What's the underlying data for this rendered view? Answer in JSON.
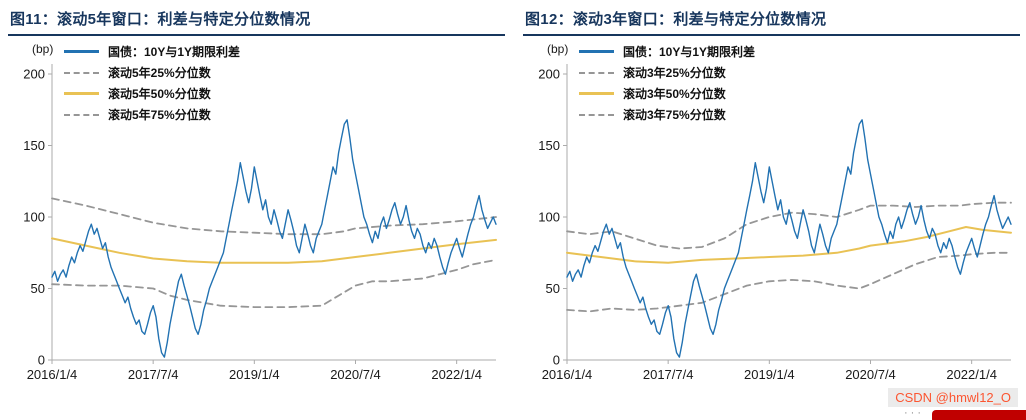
{
  "colors": {
    "title_navy": "#17365D",
    "spread_blue": "#2272B2",
    "percentile_gold": "#E9C254",
    "percentile_gray": "#969696",
    "watermark_red": "#FC5531",
    "banner_red": "#C00000"
  },
  "watermark": {
    "text": "CSDN @hmwl12_O",
    "dots": "···"
  },
  "chart_data": [
    {
      "type": "line",
      "title": "图11：滚动5年窗口：利差与特定分位数情况",
      "ylabel": "(bp)",
      "xlabel": "",
      "ylim": [
        0,
        200
      ],
      "xlim": [
        0,
        79
      ],
      "grid": false,
      "legend_position": "top-left-inside",
      "y_ticks": [
        0,
        50,
        100,
        150,
        200
      ],
      "x_ticks": [
        {
          "pos": 0,
          "label": "2016/1/4"
        },
        {
          "pos": 18,
          "label": "2017/7/4"
        },
        {
          "pos": 36,
          "label": "2019/1/4"
        },
        {
          "pos": 54,
          "label": "2020/7/4"
        },
        {
          "pos": 72,
          "label": "2022/1/4"
        }
      ],
      "legend": [
        {
          "label": "国债：10Y与1Y期限利差",
          "color": "#2272B2",
          "dash": false
        },
        {
          "label": "滚动5年25%分位数",
          "color": "#969696",
          "dash": true
        },
        {
          "label": "滚动5年50%分位数",
          "color": "#E9C254",
          "dash": false
        },
        {
          "label": "滚动5年75%分位数",
          "color": "#969696",
          "dash": true
        }
      ],
      "series": [
        {
          "key": "p75",
          "name": "滚动5年75%分位数",
          "color": "#969696",
          "dash": true,
          "width": 1.8,
          "x": [
            0,
            6,
            12,
            18,
            24,
            30,
            36,
            42,
            48,
            52,
            54,
            60,
            66,
            72,
            79
          ],
          "y": [
            113,
            108,
            102,
            96,
            92,
            90,
            89,
            88,
            88,
            90,
            92,
            94,
            95,
            97,
            100
          ]
        },
        {
          "key": "p25",
          "name": "滚动5年25%分位数",
          "color": "#969696",
          "dash": true,
          "width": 1.8,
          "x": [
            0,
            6,
            12,
            18,
            21,
            24,
            27,
            30,
            36,
            42,
            48,
            51,
            54,
            57,
            60,
            66,
            69,
            72,
            75,
            79
          ],
          "y": [
            53,
            52,
            52,
            50,
            45,
            42,
            40,
            38,
            37,
            37,
            38,
            45,
            52,
            55,
            55,
            57,
            60,
            63,
            67,
            70
          ]
        },
        {
          "key": "p50",
          "name": "滚动5年50%分位数",
          "color": "#E9C254",
          "dash": false,
          "width": 2,
          "x": [
            0,
            6,
            12,
            18,
            24,
            30,
            36,
            42,
            48,
            54,
            60,
            66,
            72,
            79
          ],
          "y": [
            85,
            80,
            75,
            71,
            69,
            68,
            68,
            68,
            69,
            72,
            75,
            78,
            81,
            84
          ]
        },
        {
          "key": "spread",
          "name": "国债：10Y与1Y期限利差",
          "color": "#2272B2",
          "dash": false,
          "width": 1.4,
          "x_start": 0,
          "x_step": 0.5,
          "values": [
            58,
            62,
            55,
            60,
            63,
            58,
            66,
            72,
            68,
            75,
            80,
            76,
            83,
            90,
            95,
            88,
            92,
            85,
            78,
            82,
            72,
            65,
            60,
            55,
            50,
            45,
            40,
            44,
            36,
            30,
            25,
            28,
            20,
            18,
            25,
            33,
            38,
            30,
            15,
            5,
            2,
            12,
            25,
            35,
            45,
            55,
            60,
            52,
            45,
            38,
            30,
            22,
            18,
            25,
            35,
            42,
            50,
            55,
            60,
            65,
            70,
            75,
            85,
            95,
            105,
            115,
            125,
            138,
            128,
            118,
            110,
            120,
            135,
            125,
            115,
            105,
            112,
            100,
            95,
            105,
            98,
            90,
            85,
            95,
            105,
            98,
            90,
            80,
            75,
            85,
            95,
            88,
            80,
            75,
            85,
            90,
            95,
            105,
            115,
            125,
            135,
            130,
            145,
            155,
            165,
            168,
            155,
            140,
            130,
            120,
            110,
            100,
            95,
            88,
            82,
            90,
            85,
            95,
            100,
            92,
            98,
            105,
            110,
            102,
            95,
            100,
            108,
            98,
            90,
            85,
            92,
            88,
            80,
            75,
            82,
            78,
            85,
            80,
            72,
            65,
            60,
            68,
            75,
            80,
            85,
            78,
            72,
            80,
            88,
            95,
            100,
            108,
            115,
            105,
            98,
            92,
            96,
            100,
            95
          ]
        }
      ]
    },
    {
      "type": "line",
      "title": "图12：滚动3年窗口：利差与特定分位数情况",
      "ylabel": "(bp)",
      "xlabel": "",
      "ylim": [
        0,
        200
      ],
      "xlim": [
        0,
        79
      ],
      "grid": false,
      "legend_position": "top-left-inside",
      "y_ticks": [
        0,
        50,
        100,
        150,
        200
      ],
      "x_ticks": [
        {
          "pos": 0,
          "label": "2016/1/4"
        },
        {
          "pos": 18,
          "label": "2017/7/4"
        },
        {
          "pos": 36,
          "label": "2019/1/4"
        },
        {
          "pos": 54,
          "label": "2020/7/4"
        },
        {
          "pos": 72,
          "label": "2022/1/4"
        }
      ],
      "legend": [
        {
          "label": "国债：10Y与1Y期限利差",
          "color": "#2272B2",
          "dash": false
        },
        {
          "label": "滚动3年25%分位数",
          "color": "#969696",
          "dash": true
        },
        {
          "label": "滚动3年50%分位数",
          "color": "#E9C254",
          "dash": false
        },
        {
          "label": "滚动3年75%分位数",
          "color": "#969696",
          "dash": true
        }
      ],
      "series": [
        {
          "key": "p75",
          "name": "滚动3年75%分位数",
          "color": "#969696",
          "dash": true,
          "width": 1.8,
          "x": [
            0,
            4,
            8,
            12,
            16,
            20,
            24,
            28,
            32,
            36,
            40,
            44,
            48,
            52,
            54,
            58,
            62,
            66,
            70,
            72,
            76,
            79
          ],
          "y": [
            90,
            88,
            90,
            85,
            80,
            78,
            79,
            85,
            95,
            100,
            103,
            102,
            100,
            105,
            108,
            108,
            107,
            108,
            108,
            109,
            110,
            110
          ]
        },
        {
          "key": "p25",
          "name": "滚动3年25%分位数",
          "color": "#969696",
          "dash": true,
          "width": 1.8,
          "x": [
            0,
            4,
            8,
            12,
            16,
            20,
            24,
            28,
            32,
            36,
            40,
            44,
            48,
            52,
            54,
            58,
            62,
            66,
            70,
            72,
            76,
            79
          ],
          "y": [
            35,
            34,
            36,
            35,
            36,
            38,
            40,
            46,
            52,
            55,
            56,
            55,
            52,
            50,
            53,
            60,
            67,
            72,
            73,
            74,
            75,
            75
          ]
        },
        {
          "key": "p50",
          "name": "滚动3年50%分位数",
          "color": "#E9C254",
          "dash": false,
          "width": 2,
          "x": [
            0,
            6,
            12,
            18,
            24,
            30,
            36,
            42,
            48,
            52,
            54,
            60,
            64,
            68,
            71,
            74,
            79
          ],
          "y": [
            75,
            72,
            69,
            68,
            70,
            71,
            72,
            73,
            75,
            78,
            80,
            83,
            86,
            90,
            93,
            91,
            89
          ]
        },
        {
          "key": "spread",
          "name": "国债：10Y与1Y期限利差",
          "color": "#2272B2",
          "dash": false,
          "width": 1.4,
          "x_start": 0,
          "x_step": 0.5,
          "values": [
            58,
            62,
            55,
            60,
            63,
            58,
            66,
            72,
            68,
            75,
            80,
            76,
            83,
            90,
            95,
            88,
            92,
            85,
            78,
            82,
            72,
            65,
            60,
            55,
            50,
            45,
            40,
            44,
            36,
            30,
            25,
            28,
            20,
            18,
            25,
            33,
            38,
            30,
            15,
            5,
            2,
            12,
            25,
            35,
            45,
            55,
            60,
            52,
            45,
            38,
            30,
            22,
            18,
            25,
            35,
            42,
            50,
            55,
            60,
            65,
            70,
            75,
            85,
            95,
            105,
            115,
            125,
            138,
            128,
            118,
            110,
            120,
            135,
            125,
            115,
            105,
            112,
            100,
            95,
            105,
            98,
            90,
            85,
            95,
            105,
            98,
            90,
            80,
            75,
            85,
            95,
            88,
            80,
            75,
            85,
            90,
            95,
            105,
            115,
            125,
            135,
            130,
            145,
            155,
            165,
            168,
            155,
            140,
            130,
            120,
            110,
            100,
            95,
            88,
            82,
            90,
            85,
            95,
            100,
            92,
            98,
            105,
            110,
            102,
            95,
            100,
            108,
            98,
            90,
            85,
            92,
            88,
            80,
            75,
            82,
            78,
            85,
            80,
            72,
            65,
            60,
            68,
            75,
            80,
            85,
            78,
            72,
            80,
            88,
            95,
            100,
            108,
            115,
            105,
            98,
            92,
            96,
            100,
            95
          ]
        }
      ]
    }
  ]
}
